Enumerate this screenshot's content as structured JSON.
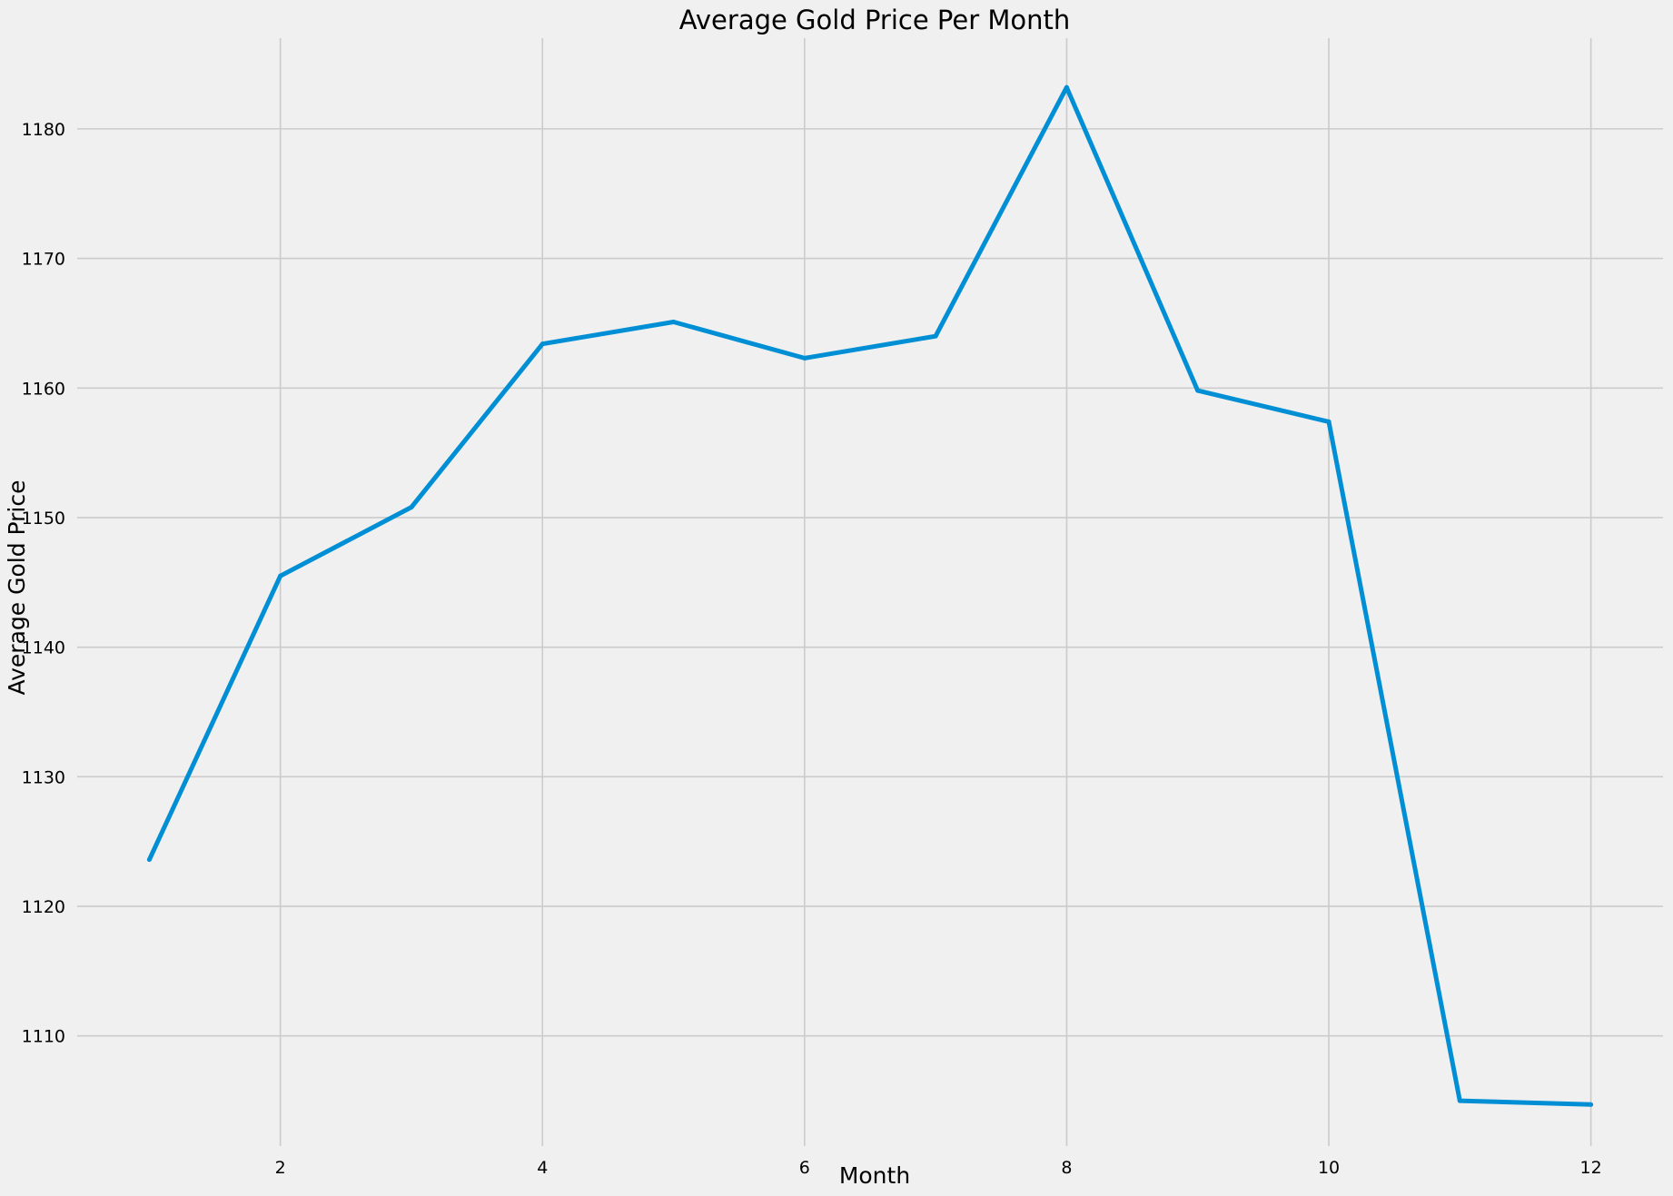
{
  "chart_data": {
    "type": "line",
    "title": "Average Gold Price Per Month",
    "xlabel": "Month",
    "ylabel": "Average Gold Price",
    "x": [
      1,
      2,
      3,
      4,
      5,
      6,
      7,
      8,
      9,
      10,
      11,
      12
    ],
    "series": [
      {
        "values": [
          1123.6,
          1145.5,
          1150.8,
          1163.4,
          1165.1,
          1162.3,
          1164.0,
          1183.2,
          1159.8,
          1157.4,
          1105.0,
          1104.7
        ],
        "color": "#008fd5"
      }
    ],
    "xlim": [
      0.45,
      12.55
    ],
    "ylim": [
      1101.5,
      1187.0
    ],
    "xticks": [
      2,
      4,
      6,
      8,
      10,
      12
    ],
    "yticks": [
      1110,
      1120,
      1130,
      1140,
      1150,
      1160,
      1170,
      1180
    ],
    "grid": true,
    "legend": "none",
    "background": "#f0f0f0",
    "grid_color": "#cbcbcb"
  }
}
